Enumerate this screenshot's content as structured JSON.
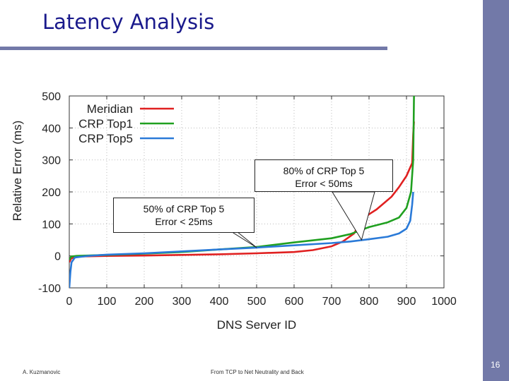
{
  "slide": {
    "title": "Latency Analysis",
    "footer_left": "A. Kuzmanovic",
    "footer_center": "From TCP to Net Neutrality and Back",
    "page_number": "16",
    "accent_color": "#7279a8",
    "title_color": "#1a1a8c"
  },
  "callouts": [
    {
      "line1": "80% of CRP Top 5",
      "line2": "Error < 50ms"
    },
    {
      "line1": "50% of CRP Top 5",
      "line2": "Error < 25ms"
    }
  ],
  "chart_data": {
    "type": "line",
    "xlabel": "DNS Server ID",
    "ylabel": "Relative Error (ms)",
    "xlim": [
      0,
      1000
    ],
    "ylim": [
      -100,
      500
    ],
    "xticks": [
      0,
      100,
      200,
      300,
      400,
      500,
      600,
      700,
      800,
      900,
      1000
    ],
    "yticks": [
      -100,
      0,
      100,
      200,
      300,
      400,
      500
    ],
    "grid": true,
    "legend_position": "top-left",
    "series": [
      {
        "name": "Meridian",
        "color": "#e02020",
        "points": [
          [
            0,
            -20
          ],
          [
            5,
            -8
          ],
          [
            20,
            -2
          ],
          [
            100,
            0
          ],
          [
            200,
            1
          ],
          [
            300,
            3
          ],
          [
            400,
            5
          ],
          [
            500,
            8
          ],
          [
            600,
            12
          ],
          [
            650,
            18
          ],
          [
            700,
            30
          ],
          [
            730,
            45
          ],
          [
            760,
            70
          ],
          [
            780,
            110
          ],
          [
            800,
            130
          ],
          [
            820,
            145
          ],
          [
            840,
            165
          ],
          [
            860,
            185
          ],
          [
            880,
            215
          ],
          [
            900,
            250
          ],
          [
            915,
            290
          ],
          [
            918,
            380
          ],
          [
            920,
            420
          ]
        ]
      },
      {
        "name": "CRP Top1",
        "color": "#20a020",
        "points": [
          [
            0,
            -12
          ],
          [
            5,
            -2
          ],
          [
            20,
            0
          ],
          [
            100,
            3
          ],
          [
            200,
            7
          ],
          [
            300,
            12
          ],
          [
            400,
            20
          ],
          [
            500,
            28
          ],
          [
            600,
            42
          ],
          [
            700,
            55
          ],
          [
            750,
            68
          ],
          [
            800,
            90
          ],
          [
            850,
            105
          ],
          [
            880,
            120
          ],
          [
            900,
            150
          ],
          [
            912,
            200
          ],
          [
            918,
            300
          ],
          [
            920,
            500
          ]
        ]
      },
      {
        "name": "CRP Top5",
        "color": "#2a7ad8",
        "points": [
          [
            0,
            -100
          ],
          [
            3,
            -50
          ],
          [
            6,
            -20
          ],
          [
            15,
            -5
          ],
          [
            50,
            0
          ],
          [
            100,
            4
          ],
          [
            200,
            8
          ],
          [
            300,
            14
          ],
          [
            400,
            20
          ],
          [
            500,
            26
          ],
          [
            600,
            33
          ],
          [
            700,
            40
          ],
          [
            750,
            45
          ],
          [
            800,
            52
          ],
          [
            850,
            60
          ],
          [
            880,
            70
          ],
          [
            900,
            85
          ],
          [
            910,
            110
          ],
          [
            915,
            160
          ],
          [
            918,
            200
          ]
        ]
      }
    ]
  }
}
